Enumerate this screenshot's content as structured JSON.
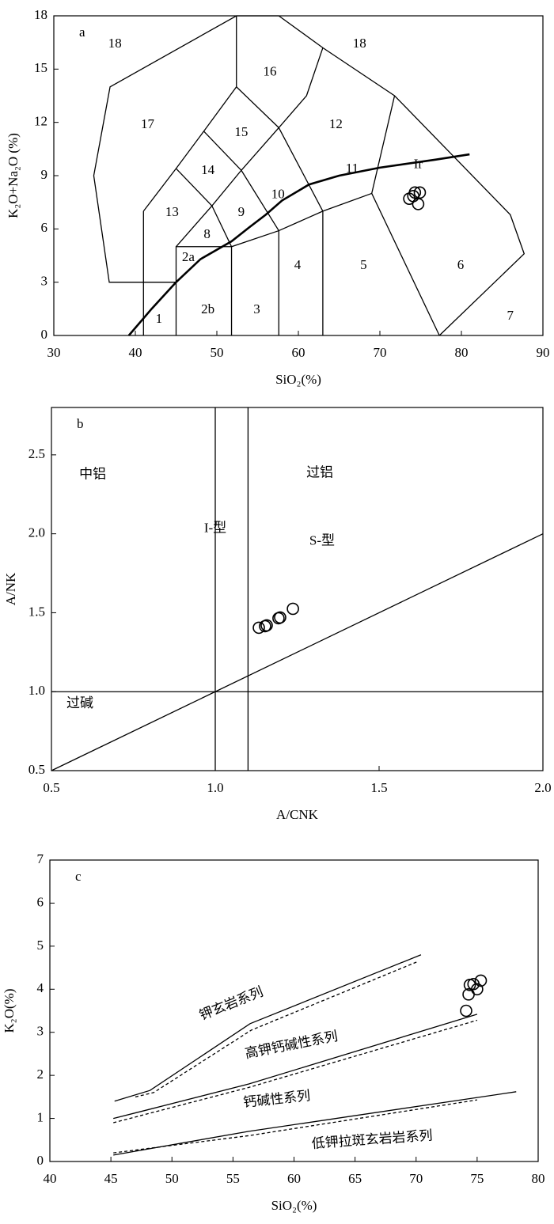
{
  "chart_data": [
    {
      "type": "scatter",
      "label": "a",
      "xlabel": "SiO₂(%)",
      "ylabel": "K₂O+Na₂O (%)",
      "xlim": [
        30,
        90
      ],
      "ylim": [
        0,
        18
      ],
      "xticks": [
        30,
        40,
        50,
        60,
        70,
        80,
        90
      ],
      "yticks": [
        0,
        3,
        6,
        9,
        12,
        15,
        18
      ],
      "x": [
        73.6,
        74.3,
        74.9,
        74.7,
        74.1
      ],
      "values": [
        7.7,
        8.05,
        8.05,
        7.4,
        7.85
      ],
      "boundaries": [
        {
          "x": [
            41,
            41
          ],
          "y": [
            0,
            7
          ]
        },
        {
          "x": [
            45,
            36.8,
            34.9,
            36.9,
            52.4,
            57.6,
            63,
            71.8,
            86,
            87.7,
            77.3
          ],
          "y": [
            3,
            3,
            9,
            14,
            18,
            18,
            16.2,
            13.5,
            6.8,
            4.6,
            0
          ]
        },
        {
          "x": [
            41,
            45,
            48.4,
            52.4,
            52.4
          ],
          "y": [
            7,
            9.4,
            11.5,
            14,
            18
          ]
        },
        {
          "x": [
            52.4,
            57.6,
            61,
            63
          ],
          "y": [
            14,
            11.7,
            13.5,
            16.2
          ]
        },
        {
          "x": [
            71.8,
            69,
            77.3
          ],
          "y": [
            13.5,
            8,
            0
          ]
        },
        {
          "x": [
            48.4,
            53,
            57.6,
            63,
            63
          ],
          "y": [
            11.5,
            9.3,
            11.7,
            7,
            0
          ]
        },
        {
          "x": [
            45,
            49.4,
            53,
            57.6,
            57.6
          ],
          "y": [
            9.4,
            7.3,
            9.3,
            5.9,
            0
          ]
        },
        {
          "x": [
            45,
            45,
            51.8,
            51.8
          ],
          "y": [
            0,
            5,
            5,
            0
          ]
        },
        {
          "x": [
            45,
            49.4,
            51.8,
            57.6,
            63,
            69
          ],
          "y": [
            5,
            7.3,
            5,
            5.9,
            7,
            8
          ]
        },
        {
          "x": [
            39.2,
            42,
            45,
            48,
            51.8,
            54,
            56,
            58,
            61.3,
            65,
            70,
            76.8,
            81
          ],
          "y": [
            0,
            1.5,
            3.0,
            4.3,
            5.3,
            6.1,
            6.8,
            7.6,
            8.5,
            9.0,
            9.45,
            9.9,
            10.2
          ],
          "bold": true
        }
      ],
      "annotations": [
        {
          "text": "18",
          "x": 37.5,
          "y": 16.4
        },
        {
          "text": "18",
          "x": 67.5,
          "y": 16.4
        },
        {
          "text": "16",
          "x": 56.5,
          "y": 14.8
        },
        {
          "text": "17",
          "x": 41.5,
          "y": 11.85
        },
        {
          "text": "15",
          "x": 53,
          "y": 11.4
        },
        {
          "text": "12",
          "x": 64.6,
          "y": 11.85
        },
        {
          "text": "14",
          "x": 48.9,
          "y": 9.27
        },
        {
          "text": "11",
          "x": 66.6,
          "y": 9.36
        },
        {
          "text": "Ir",
          "x": 74.7,
          "y": 9.6
        },
        {
          "text": "13",
          "x": 44.5,
          "y": 6.9
        },
        {
          "text": "9",
          "x": 53,
          "y": 6.9
        },
        {
          "text": "10",
          "x": 57.5,
          "y": 7.9
        },
        {
          "text": "8",
          "x": 48.8,
          "y": 5.66
        },
        {
          "text": "2a",
          "x": 46.5,
          "y": 4.37
        },
        {
          "text": "4",
          "x": 59.9,
          "y": 3.92
        },
        {
          "text": "5",
          "x": 68,
          "y": 3.92
        },
        {
          "text": "6",
          "x": 79.9,
          "y": 3.92
        },
        {
          "text": "1",
          "x": 42.9,
          "y": 0.89
        },
        {
          "text": "2b",
          "x": 48.9,
          "y": 1.43
        },
        {
          "text": "3",
          "x": 54.9,
          "y": 1.43
        },
        {
          "text": "7",
          "x": 86,
          "y": 1.07
        }
      ]
    },
    {
      "type": "scatter",
      "label": "b",
      "xlabel": "A/CNK",
      "ylabel": "A/NK",
      "xlim": [
        0.5,
        2.0
      ],
      "ylim": [
        0.5,
        2.8
      ],
      "xticks": [
        0.5,
        {
          "value": 1,
          "label": "1.0"
        },
        1.5,
        {
          "value": 2,
          "label": "2.0"
        }
      ],
      "yticks": [
        0.5,
        {
          "value": 1,
          "label": "1.0"
        },
        1.5,
        {
          "value": 2,
          "label": "2.0"
        },
        2.5
      ],
      "x": [
        1.133,
        1.152,
        1.157,
        1.193,
        1.198,
        1.237
      ],
      "values": [
        1.405,
        1.415,
        1.42,
        1.465,
        1.47,
        1.525
      ],
      "boundaries": [
        {
          "x": [
            1,
            1
          ],
          "y": [
            0.5,
            2.8
          ]
        },
        {
          "x": [
            1.1,
            1.1
          ],
          "y": [
            0.5,
            2.8
          ]
        },
        {
          "x": [
            0.5,
            2.0
          ],
          "y": [
            1,
            1
          ]
        },
        {
          "x": [
            0.5,
            2.0
          ],
          "y": [
            0.5,
            2.0
          ]
        }
      ],
      "annotations": [
        {
          "text": "中铝",
          "x": 0.626,
          "y": 2.37
        },
        {
          "text": "过铝",
          "x": 1.319,
          "y": 2.38
        },
        {
          "text": "I-型",
          "x": 1.0,
          "y": 2.03
        },
        {
          "text": "S-型",
          "x": 1.326,
          "y": 1.95
        },
        {
          "text": "过碱",
          "x": 0.587,
          "y": 0.92
        }
      ]
    },
    {
      "type": "scatter",
      "label": "c",
      "xlabel": "SiO₂(%)",
      "ylabel": "K₂O(%)",
      "xlim": [
        40,
        80
      ],
      "ylim": [
        0,
        7
      ],
      "xticks": [
        40,
        45,
        50,
        55,
        60,
        65,
        70,
        75,
        80
      ],
      "yticks": [
        0,
        1,
        2,
        3,
        4,
        5,
        6,
        7
      ],
      "x": [
        74.1,
        74.3,
        74.4,
        75.0,
        75.3,
        74.7
      ],
      "values": [
        3.5,
        3.88,
        4.1,
        4.0,
        4.2,
        4.12
      ],
      "boundaries": [
        {
          "x": [
            45.3,
            48.2,
            56.4,
            70.4
          ],
          "y": [
            1.4,
            1.65,
            3.2,
            4.8
          ]
        },
        {
          "x": [
            47,
            48.5,
            56.5,
            70.2
          ],
          "y": [
            1.5,
            1.6,
            3.05,
            4.65
          ],
          "dashed": true
        },
        {
          "x": [
            45.2,
            48,
            56.3,
            75
          ],
          "y": [
            1.0,
            1.2,
            1.8,
            3.42
          ]
        },
        {
          "x": [
            45.2,
            56.3,
            75
          ],
          "y": [
            0.9,
            1.72,
            3.28
          ],
          "dashed": true
        },
        {
          "x": [
            45.2,
            56.3,
            78.2
          ],
          "y": [
            0.15,
            0.7,
            1.62
          ]
        },
        {
          "x": [
            45.2,
            56.3,
            75
          ],
          "y": [
            0.2,
            0.6,
            1.43
          ],
          "dashed": true
        }
      ],
      "annotations": [
        {
          "text": "钾玄岩系列",
          "x": 54.9,
          "y": 3.64
        },
        {
          "text": "高钾钙碱性系列",
          "x": 59.8,
          "y": 2.68
        },
        {
          "text": "钙碱性系列",
          "x": 58.6,
          "y": 1.42
        },
        {
          "text": "低钾拉斑玄岩岩系列",
          "x": 66.4,
          "y": 0.48
        }
      ]
    }
  ]
}
